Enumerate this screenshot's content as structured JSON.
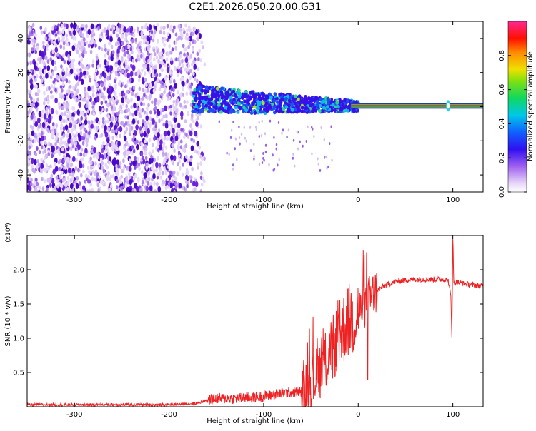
{
  "title": "C2E1.2026.050.20.00.G31",
  "colors": {
    "line": "#ee2222",
    "spectral_core": "#ff2244",
    "spectral_edge": "#22cc55",
    "purple_dark": "#5a10d8",
    "purple_light": "#c8a8f4"
  },
  "chart_data": [
    {
      "type": "heatmap",
      "title": "C2E1.2026.050.20.00.G31",
      "xlabel": "Height of straight line (km)",
      "ylabel": "Frequency (Hz)",
      "xlim": [
        -350,
        132
      ],
      "ylim": [
        -50,
        50
      ],
      "xticks": [
        -300,
        -200,
        -100,
        0,
        100
      ],
      "yticks": [
        -40,
        -20,
        0,
        20,
        40
      ],
      "xtick_labels": [
        "-300",
        "-200",
        "-100",
        "0",
        "100"
      ],
      "ytick_labels": [
        "-40",
        "-20",
        "0",
        "20",
        "40"
      ],
      "colorbar": {
        "label": "Normalized spectral amplitude",
        "range": [
          0,
          1
        ],
        "ticks": [
          0.0,
          0.2,
          0.4,
          0.6,
          0.8
        ],
        "tick_labels": [
          "0.0",
          "0.2",
          "0.4",
          "0.6",
          "0.8"
        ]
      },
      "regions": {
        "noise": {
          "x_range": [
            -350,
            -162
          ],
          "y_range": [
            -50,
            48
          ]
        },
        "trend": {
          "x": [
            -175,
            -150,
            -125,
            -100,
            -75,
            -50,
            -30,
            -10,
            0
          ],
          "y": [
            5,
            4,
            3,
            2,
            2,
            1,
            1,
            0.5,
            0.3
          ]
        },
        "steady_line": {
          "x_range": [
            0,
            132
          ],
          "y": 0.5,
          "value": 0.85
        },
        "spike": {
          "x": 95,
          "y": 0.5
        }
      }
    },
    {
      "type": "line",
      "xlabel": "Height of straight line (km)",
      "ylabel": "SNR (10 * v/v)",
      "yscale_label": "(x10⁴)",
      "xlim": [
        -350,
        132
      ],
      "ylim": [
        0,
        2.5
      ],
      "xticks": [
        -300,
        -200,
        -100,
        0,
        100
      ],
      "yticks": [
        0.5,
        1.0,
        1.5,
        2.0
      ],
      "xtick_labels": [
        "-300",
        "-200",
        "-100",
        "0",
        "100"
      ],
      "ytick_labels": [
        "0.5",
        "1.0",
        "1.5",
        "2.0"
      ],
      "series": [
        {
          "x": [
            -350,
            -300,
            -250,
            -200,
            -170,
            -160,
            -150,
            -130,
            -100,
            -80,
            -60,
            -50,
            -40,
            -30,
            -20,
            -10,
            0,
            5,
            10,
            20,
            30,
            40,
            50,
            60,
            80,
            90,
            95,
            98,
            99,
            100,
            101,
            105,
            110,
            120,
            132
          ],
          "y": [
            0.03,
            0.03,
            0.03,
            0.03,
            0.05,
            0.1,
            0.12,
            0.12,
            0.15,
            0.2,
            0.22,
            0.35,
            0.55,
            0.75,
            1.05,
            1.25,
            1.35,
            1.45,
            1.55,
            1.7,
            1.78,
            1.83,
            1.85,
            1.86,
            1.86,
            1.86,
            1.85,
            1.6,
            1.0,
            2.5,
            1.8,
            1.82,
            1.8,
            1.78,
            1.76
          ]
        }
      ]
    }
  ]
}
